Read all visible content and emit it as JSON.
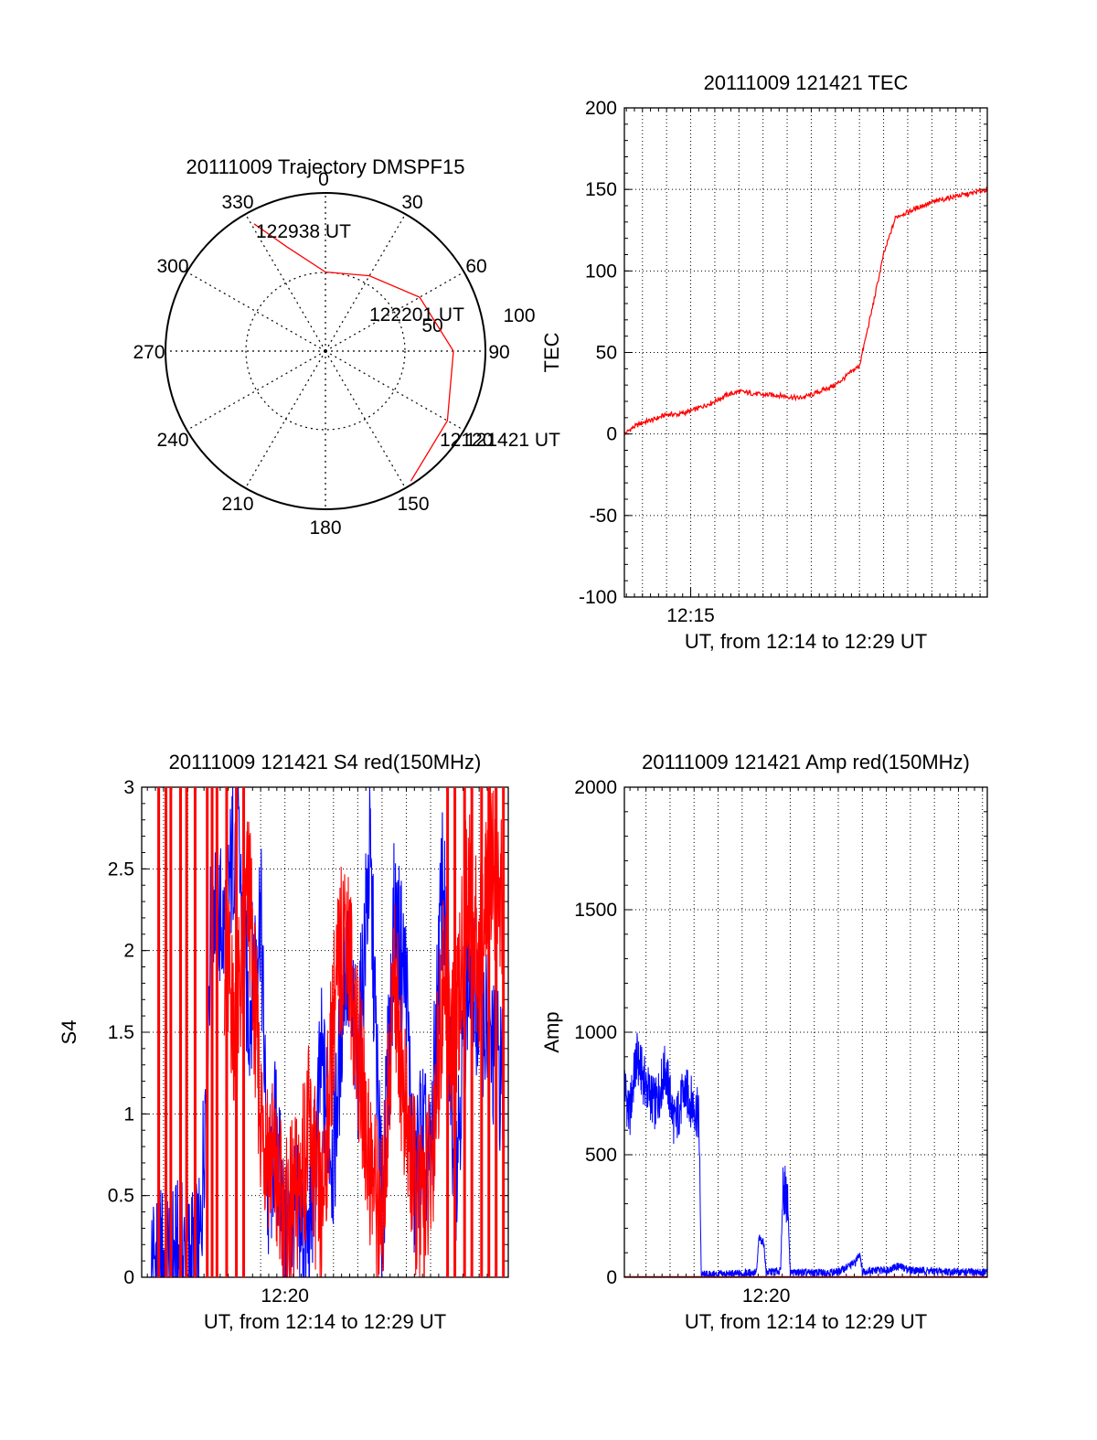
{
  "colors": {
    "red": "#ff0000",
    "blue": "#0000ff",
    "axis": "#000000",
    "grid": "#000000"
  },
  "chart_data": [
    {
      "id": "trajectory",
      "type": "polar",
      "title": "20111009 Trajectory DMSPF15",
      "angle_labels": [
        "0",
        "30",
        "60",
        "90",
        "150",
        "180",
        "210",
        "240",
        "270",
        "300",
        "330"
      ],
      "radial_labels": [
        "50",
        "100"
      ],
      "r_max": 100,
      "series": [
        {
          "color": "red",
          "points": [
            [
              331,
              92
            ],
            [
              340,
              70
            ],
            [
              0,
              50
            ],
            [
              30,
              55
            ],
            [
              60,
              68
            ],
            [
              90,
              80
            ],
            [
              120,
              88
            ],
            [
              147,
              98
            ]
          ]
        }
      ],
      "annotations": [
        {
          "text": "122938 UT",
          "az": 331,
          "r": 92
        },
        {
          "text": "122201 UT",
          "az": 59,
          "r": 55
        },
        {
          "text": "121421 UT",
          "az": 147,
          "r": 98
        },
        {
          "text": "12120",
          "az": 147,
          "r": 98
        }
      ]
    },
    {
      "id": "tec",
      "type": "line",
      "title": "20111009 121421 TEC",
      "xlabel": "UT, from 12:14 to 12:29 UT",
      "ylabel": "TEC",
      "xlim_minutes": [
        12.25,
        27.3
      ],
      "ylim": [
        -100,
        200
      ],
      "yticks": [
        -100,
        -50,
        0,
        50,
        100,
        150,
        200
      ],
      "xtick_labels": [
        {
          "minute": 15,
          "label": "12:15"
        }
      ],
      "grid": true,
      "series": [
        {
          "color": "red",
          "x_minutes": [
            12.25,
            12.6,
            13.0,
            13.5,
            14.0,
            14.5,
            15.0,
            15.5,
            16.0,
            16.5,
            17.0,
            17.5,
            18.0,
            18.5,
            19.0,
            19.5,
            20.0,
            20.5,
            21.0,
            21.5,
            22.0,
            22.5,
            23.0,
            23.5,
            23.8,
            24.0,
            24.3,
            24.6,
            25.0,
            25.5,
            26.0,
            26.5,
            27.0,
            27.3
          ],
          "values": [
            0,
            4,
            7,
            9,
            12,
            12,
            14,
            17,
            20,
            24,
            26,
            25,
            24,
            24,
            23,
            22,
            24,
            27,
            30,
            36,
            42,
            75,
            110,
            133,
            135,
            136,
            138,
            140,
            142,
            144,
            146,
            147,
            149,
            150
          ]
        }
      ]
    },
    {
      "id": "s4",
      "type": "line",
      "title": "20111009 121421 S4 red(150MHz)",
      "xlabel": "UT, from 12:14 to 12:29 UT",
      "ylabel": "S4",
      "xlim_minutes": [
        14.1,
        29.2
      ],
      "ylim": [
        0,
        3
      ],
      "yticks": [
        "0",
        "0.5",
        "1",
        "1.5",
        "2",
        "2.5",
        "3"
      ],
      "xtick_labels": [
        {
          "minute": 20,
          "label": "12:20"
        }
      ],
      "grid": true,
      "series": [
        {
          "color": "blue",
          "x_minutes": [
            14.5,
            14.9,
            15.3,
            15.7,
            16.1,
            16.5,
            17.0,
            17.5,
            18.0,
            18.5,
            19.0,
            19.3,
            19.6,
            20.0,
            20.5,
            21.0,
            21.5,
            22.0,
            22.5,
            23.0,
            23.5,
            24.0,
            24.5,
            25.0,
            25.3,
            25.6,
            26.0,
            26.5,
            27.0,
            27.5,
            28.0,
            28.5,
            29.0
          ],
          "values": [
            0.11,
            0.1,
            0.12,
            0.1,
            0.11,
            0.11,
            2.4,
            2.1,
            2.8,
            1.6,
            2.3,
            0.4,
            0.9,
            0.2,
            0.35,
            0.18,
            1.3,
            0.7,
            2.0,
            1.3,
            2.6,
            0.3,
            2.2,
            1.8,
            0.5,
            0.9,
            0.65,
            2.5,
            0.6,
            1.8,
            1.7,
            1.4,
            1.2
          ]
        },
        {
          "color": "red",
          "x_minutes": [
            17.5,
            18.0,
            18.5,
            19.0,
            19.5,
            20.0,
            20.5,
            21.0,
            21.5,
            22.0,
            22.5,
            23.0,
            23.5,
            24.0,
            24.5,
            25.0,
            25.5,
            26.0,
            26.5,
            27.0,
            27.5,
            28.0,
            28.5,
            29.0
          ],
          "values": [
            2.0,
            1.5,
            2.4,
            1.0,
            0.7,
            0.3,
            0.5,
            0.9,
            0.3,
            1.6,
            2.2,
            1.4,
            0.7,
            0.3,
            1.9,
            0.9,
            0.4,
            0.6,
            1.8,
            1.3,
            2.4,
            1.9,
            2.6,
            2.2
          ]
        }
      ]
    },
    {
      "id": "amp",
      "type": "line",
      "title": "20111009 121421 Amp red(150MHz)",
      "xlabel": "UT, from 12:14 to 12:29 UT",
      "ylabel": "Amp",
      "xlim_minutes": [
        14.1,
        29.2
      ],
      "ylim": [
        0,
        2000
      ],
      "yticks": [
        0,
        500,
        1000,
        1500,
        2000
      ],
      "xtick_labels": [
        {
          "minute": 20,
          "label": "12:20"
        }
      ],
      "grid": true,
      "series": [
        {
          "color": "blue",
          "x_minutes": [
            14.1,
            14.3,
            14.6,
            15.0,
            15.4,
            15.8,
            16.2,
            16.6,
            17.0,
            17.2,
            17.3,
            18.0,
            19.0,
            19.6,
            19.7,
            19.9,
            20.0,
            20.6,
            20.7,
            20.9,
            21.0,
            22.0,
            23.0,
            23.7,
            23.9,
            24.0,
            25.0,
            25.5,
            26.0,
            27.0,
            28.0,
            29.2
          ],
          "values": [
            800,
            650,
            900,
            780,
            700,
            850,
            620,
            760,
            700,
            650,
            10,
            12,
            15,
            20,
            160,
            140,
            20,
            25,
            380,
            300,
            20,
            18,
            22,
            60,
            100,
            25,
            30,
            45,
            30,
            25,
            22,
            20
          ]
        },
        {
          "color": "red",
          "x_minutes": [
            14.1,
            29.2
          ],
          "values": [
            3,
            3
          ]
        }
      ]
    }
  ]
}
